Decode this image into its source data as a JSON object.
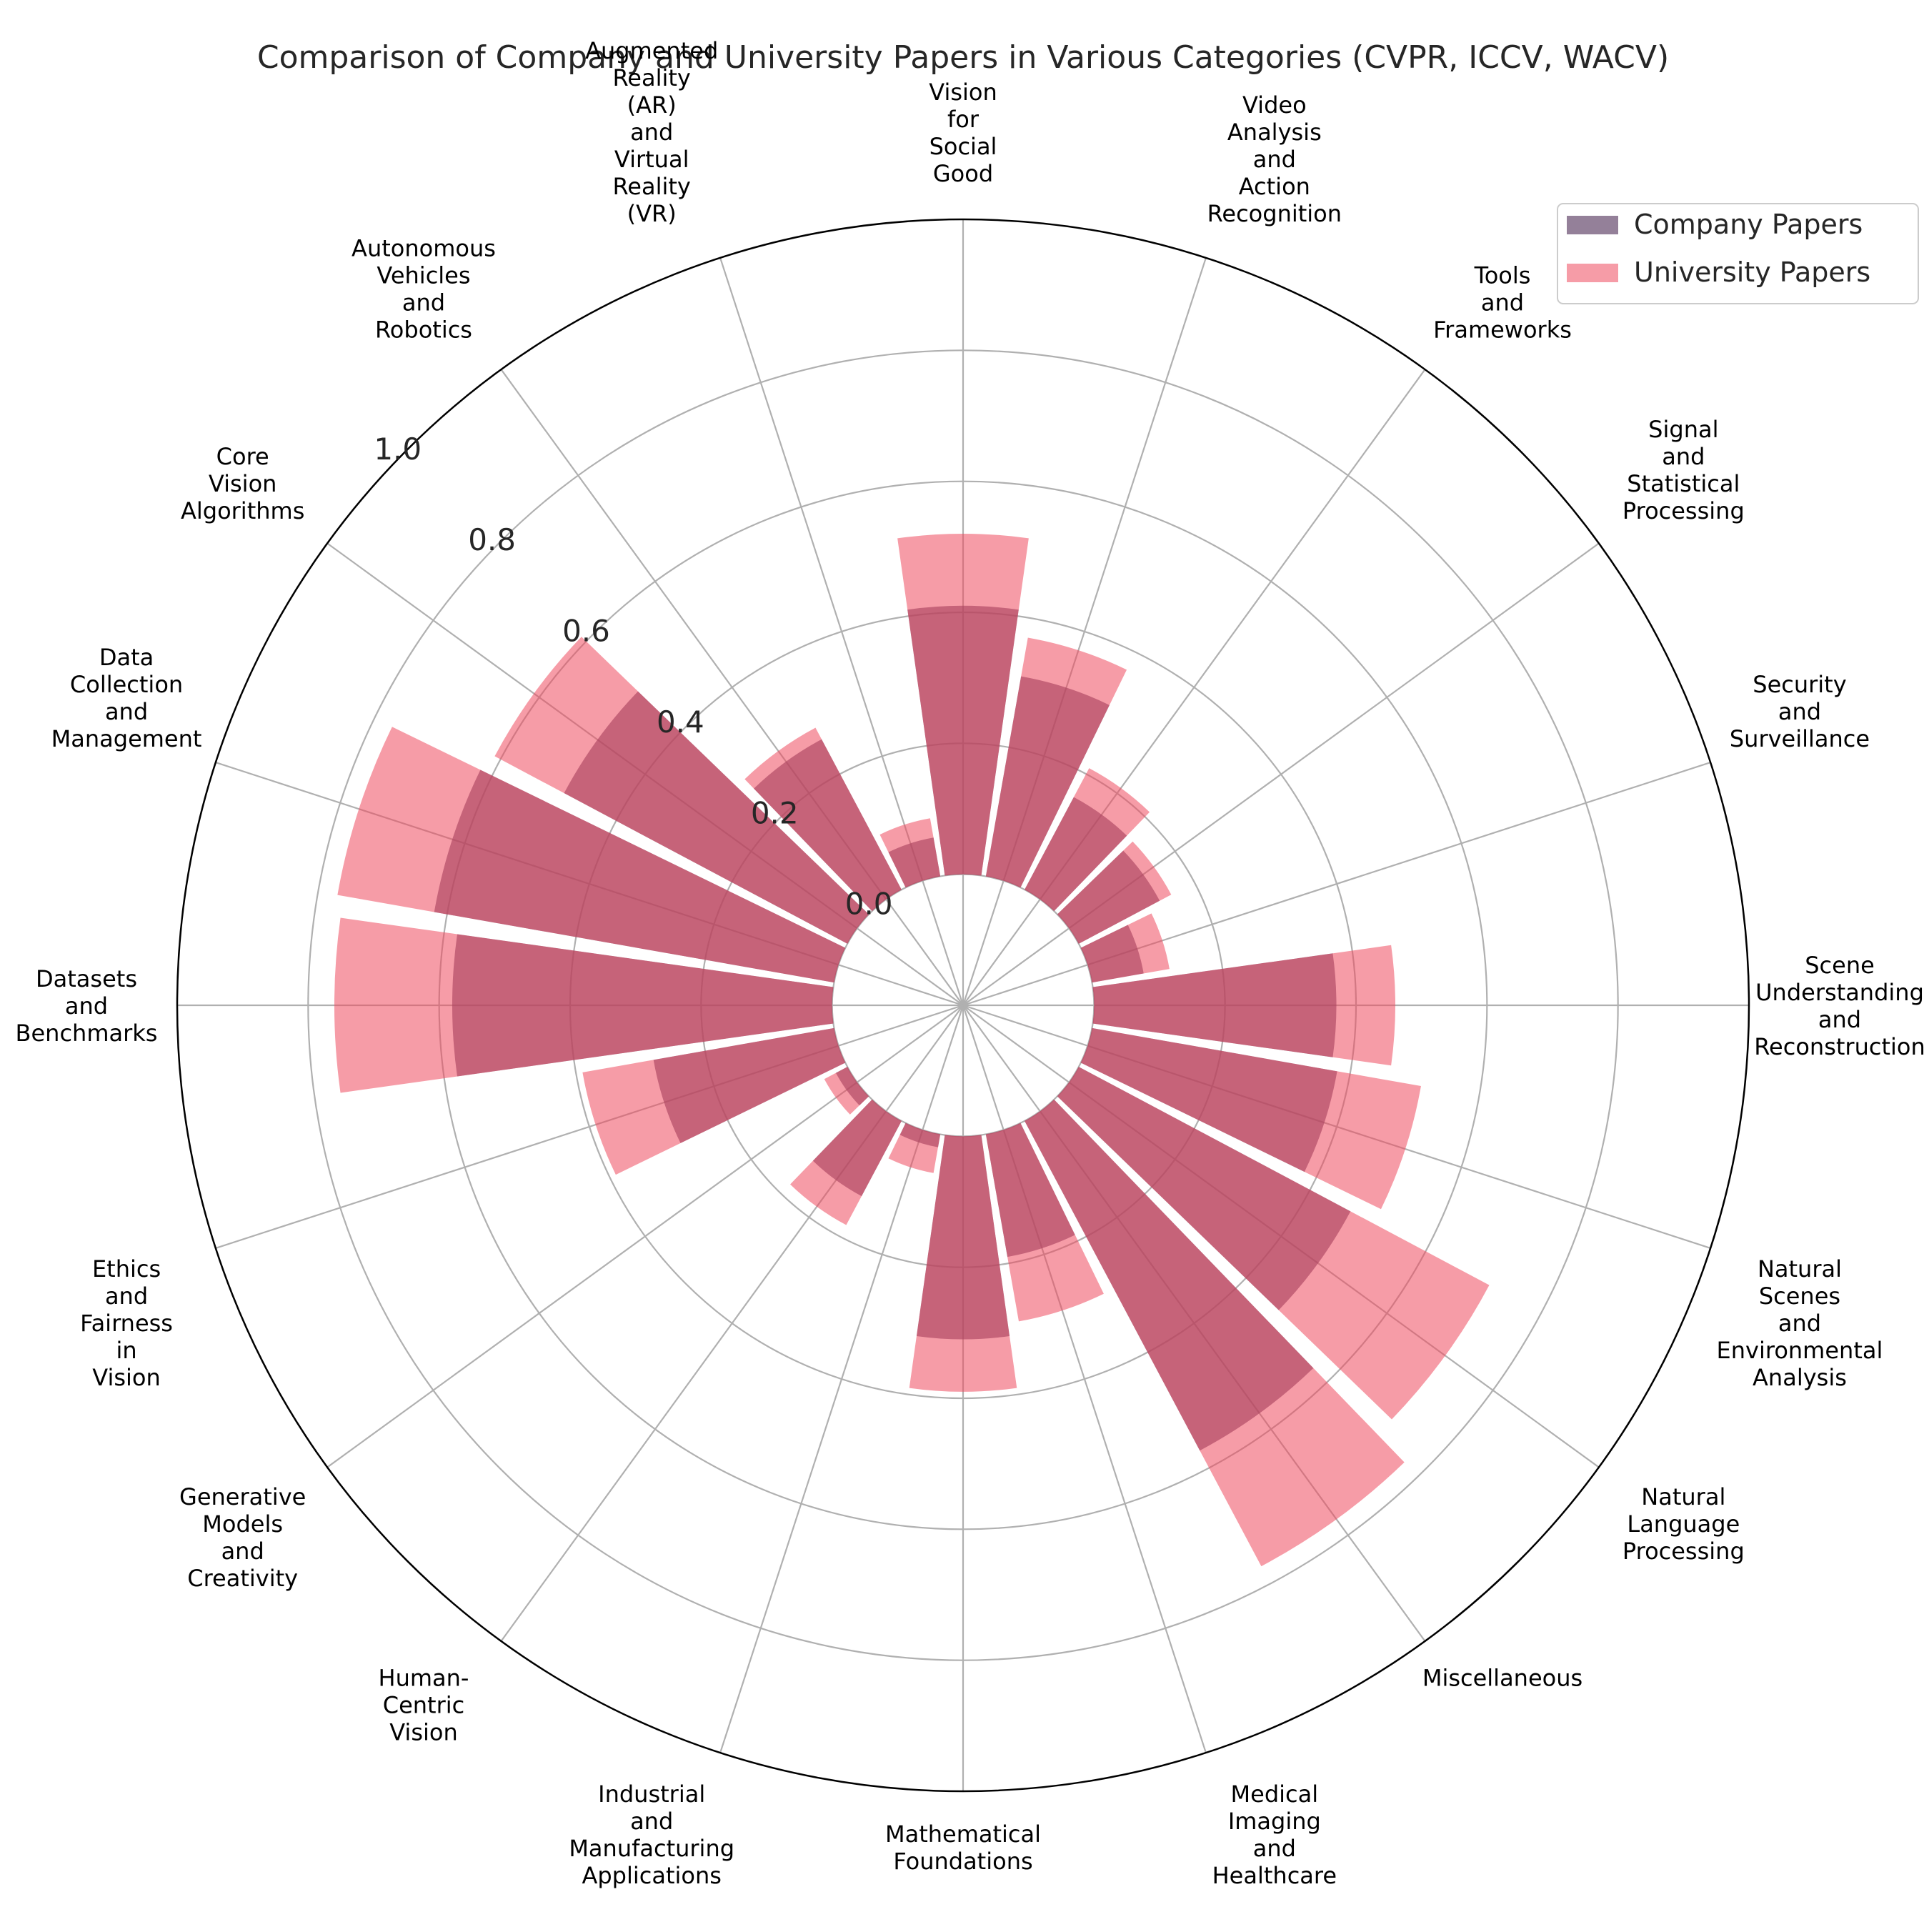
{
  "chart_data": {
    "type": "bar",
    "subtype": "polar",
    "title": "Comparison of Company and University Papers in Various Categories (CVPR, ICCV, WACV)",
    "categories": [
      [
        "Scene",
        "Understanding",
        "and",
        "Reconstruction"
      ],
      [
        "Security",
        "and",
        "Surveillance"
      ],
      [
        "Signal",
        "and",
        "Statistical",
        "Processing"
      ],
      [
        "Tools",
        "and",
        "Frameworks"
      ],
      [
        "Video",
        "Analysis",
        "and",
        "Action",
        "Recognition"
      ],
      [
        "Vision",
        "for",
        "Social",
        "Good"
      ],
      [
        "Augmented",
        "Reality",
        "(AR)",
        "and",
        "Virtual",
        "Reality",
        "(VR)"
      ],
      [
        "Autonomous",
        "Vehicles",
        "and",
        "Robotics"
      ],
      [
        "Core",
        "Vision",
        "Algorithms"
      ],
      [
        "Data",
        "Collection",
        "and",
        "Management"
      ],
      [
        "Datasets",
        "and",
        "Benchmarks"
      ],
      [
        "Ethics",
        "and",
        "Fairness",
        "in",
        "Vision"
      ],
      [
        "Generative",
        "Models",
        "and",
        "Creativity"
      ],
      [
        "Human-",
        "Centric",
        "Vision"
      ],
      [
        "Industrial",
        "and",
        "Manufacturing",
        "Applications"
      ],
      [
        "Mathematical",
        "Foundations"
      ],
      [
        "Medical",
        "Imaging",
        "and",
        "Healthcare"
      ],
      [
        "Miscellaneous"
      ],
      [
        "Natural",
        "Language",
        "Processing"
      ],
      [
        "Natural",
        "Scenes",
        "and",
        "Environmental",
        "Analysis"
      ]
    ],
    "category_angles_deg": [
      0,
      18,
      36,
      54,
      72,
      90,
      108,
      126,
      144,
      162,
      180,
      198,
      216,
      234,
      252,
      270,
      288,
      306,
      324,
      342
    ],
    "series": [
      {
        "name": "Company Papers",
        "color": "#5b3c63",
        "values": [
          0.37,
          0.08,
          0.14,
          0.16,
          0.31,
          0.41,
          0.06,
          0.26,
          0.49,
          0.62,
          0.58,
          0.28,
          0.02,
          0.13,
          0.02,
          0.31,
          0.19,
          0.57,
          0.47,
          0.38
        ]
      },
      {
        "name": "University Papers",
        "color": "#ef4b5f",
        "values": [
          0.46,
          0.12,
          0.16,
          0.21,
          0.37,
          0.52,
          0.09,
          0.28,
          0.61,
          0.77,
          0.76,
          0.39,
          0.04,
          0.18,
          0.06,
          0.39,
          0.29,
          0.77,
          0.71,
          0.51
        ]
      }
    ],
    "rlim": [
      -0.2,
      1.0
    ],
    "r_ticks": [
      0.0,
      0.2,
      0.4,
      0.6,
      0.8,
      1.0
    ],
    "r_tick_labels": [
      "0.0",
      "0.2",
      "0.4",
      "0.6",
      "0.8",
      "1.0"
    ],
    "grid": true,
    "legend_position": "top-right"
  }
}
